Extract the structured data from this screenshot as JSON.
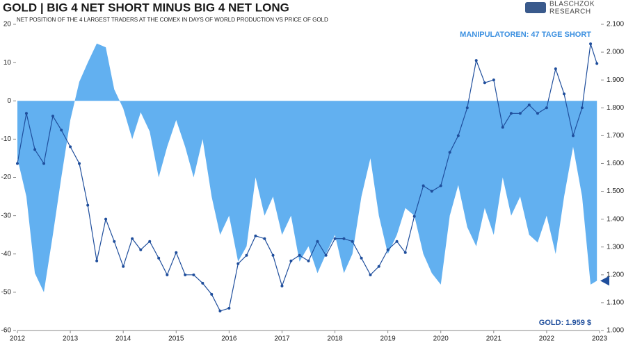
{
  "chart_data": {
    "type": "area-line",
    "title": "GOLD | BIG 4 NET SHORT MINUS BIG 4 NET LONG",
    "subtitle": "NET POSITION OF THE 4 LARGEST TRADERS AT THE COMEX IN DAYS OF WORLD PRODUCTION VS PRICE OF GOLD",
    "brand": [
      "BLASCHZOK",
      "RESEARCH"
    ],
    "annotations": [
      "MANIPULATOREN: 47 TAGE SHORT",
      "GOLD: 1.959 $"
    ],
    "x": [
      2012.0,
      2012.17,
      2012.33,
      2012.5,
      2012.67,
      2012.83,
      2013.0,
      2013.17,
      2013.33,
      2013.5,
      2013.67,
      2013.83,
      2014.0,
      2014.17,
      2014.33,
      2014.5,
      2014.67,
      2014.83,
      2015.0,
      2015.17,
      2015.33,
      2015.5,
      2015.67,
      2015.83,
      2016.0,
      2016.17,
      2016.33,
      2016.5,
      2016.67,
      2016.83,
      2017.0,
      2017.17,
      2017.33,
      2017.5,
      2017.67,
      2017.83,
      2018.0,
      2018.17,
      2018.33,
      2018.5,
      2018.67,
      2018.83,
      2019.0,
      2019.17,
      2019.33,
      2019.5,
      2019.67,
      2019.83,
      2020.0,
      2020.17,
      2020.33,
      2020.5,
      2020.67,
      2020.83,
      2021.0,
      2021.17,
      2021.33,
      2021.5,
      2021.67,
      2021.83,
      2022.0,
      2022.17,
      2022.33,
      2022.5,
      2022.67,
      2022.83,
      2022.95
    ],
    "series": [
      {
        "type": "area",
        "color": "#62b0f0",
        "values": [
          -15,
          -25,
          -45,
          -50,
          -35,
          -20,
          -5,
          5,
          10,
          15,
          14,
          3,
          -2,
          -10,
          -3,
          -8,
          -20,
          -12,
          -5,
          -12,
          -20,
          -10,
          -25,
          -35,
          -30,
          -42,
          -38,
          -20,
          -30,
          -25,
          -35,
          -30,
          -42,
          -38,
          -45,
          -40,
          -35,
          -45,
          -40,
          -25,
          -15,
          -30,
          -40,
          -35,
          -28,
          -30,
          -40,
          -45,
          -48,
          -30,
          -22,
          -33,
          -38,
          -28,
          -35,
          -20,
          -30,
          -25,
          -35,
          -37,
          -30,
          -40,
          -25,
          -12,
          -25,
          -48,
          -47
        ]
      },
      {
        "type": "line",
        "axis": "y2",
        "color": "#1f4e9c",
        "values": [
          1600,
          1780,
          1650,
          1600,
          1770,
          1720,
          1660,
          1600,
          1450,
          1250,
          1400,
          1320,
          1230,
          1330,
          1290,
          1320,
          1260,
          1200,
          1280,
          1200,
          1200,
          1170,
          1130,
          1070,
          1080,
          1240,
          1270,
          1340,
          1330,
          1270,
          1160,
          1250,
          1270,
          1250,
          1320,
          1270,
          1330,
          1330,
          1320,
          1260,
          1200,
          1230,
          1290,
          1320,
          1280,
          1410,
          1520,
          1500,
          1520,
          1640,
          1700,
          1800,
          1970,
          1890,
          1900,
          1730,
          1780,
          1780,
          1810,
          1780,
          1800,
          1940,
          1850,
          1700,
          1800,
          2030,
          1959
        ]
      }
    ],
    "xlim": [
      2012,
      2023
    ],
    "xticks": [
      2012,
      2013,
      2014,
      2015,
      2016,
      2017,
      2018,
      2019,
      2020,
      2021,
      2022,
      2023
    ],
    "ylim": [
      -60,
      20
    ],
    "yticks": [
      20,
      10,
      0,
      -10,
      -20,
      -30,
      -40,
      -50,
      -60
    ],
    "y2lim": [
      1000,
      2100
    ],
    "y2ticks": [
      {
        "value": 2100,
        "label": "2.100"
      },
      {
        "value": 2000,
        "label": "2.000"
      },
      {
        "value": 1900,
        "label": "1.900"
      },
      {
        "value": 1800,
        "label": "1.800"
      },
      {
        "value": 1700,
        "label": "1.700"
      },
      {
        "value": 1600,
        "label": "1.600"
      },
      {
        "value": 1500,
        "label": "1.500"
      },
      {
        "value": 1400,
        "label": "1.400"
      },
      {
        "value": 1300,
        "label": "1.300"
      },
      {
        "value": 1200,
        "label": "1.200"
      },
      {
        "value": 1100,
        "label": "1.100"
      },
      {
        "value": 1000,
        "label": "1.000"
      }
    ]
  }
}
